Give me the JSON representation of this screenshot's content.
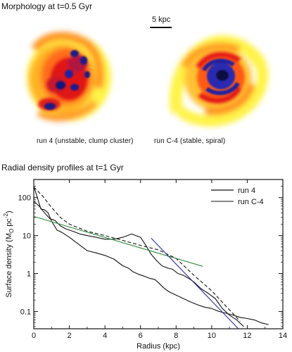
{
  "panel_top": {
    "title": "Morphology at t=0.5 Gyr",
    "scale_label": "5 kpc",
    "captions": [
      "run 4  (unstable, clump cluster)",
      "run C-4 (stable, spiral)"
    ]
  },
  "panel_bottom": {
    "title": "Radial density profiles at t=1 Gyr"
  },
  "chart_data": {
    "type": "line",
    "xlabel": "Radius (kpc)",
    "ylabel": "Surface density (M⊙ pc⁻²)",
    "ylabel_parts": {
      "main": "Surface density (M",
      "sub": "O",
      "mid": " pc",
      "sup": "-2",
      "end": ")"
    },
    "xlim": [
      0,
      14
    ],
    "ylim": [
      0.035,
      300
    ],
    "yscale": "log",
    "xticks": [
      "0",
      "2",
      "4",
      "6",
      "8",
      "10",
      "12",
      "14"
    ],
    "yticks": [
      "0.1",
      "1",
      "10",
      "100"
    ],
    "legend_position": "top-right",
    "legend_entries": [
      "run 4",
      "run C-4"
    ],
    "series": [
      {
        "name": "run 4",
        "style": "solid",
        "color": "#111111",
        "x": [
          0,
          0.2,
          0.4,
          0.6,
          0.8,
          1.0,
          1.3,
          1.6,
          2.0,
          2.5,
          3.0,
          3.5,
          4.0,
          4.5,
          5.0,
          5.3,
          5.6,
          5.9,
          6.2,
          6.5,
          6.8,
          7.0,
          7.3,
          7.6,
          8.0,
          8.4,
          8.8,
          9.2,
          9.6,
          10.0,
          10.4,
          10.8,
          11.2,
          11.6,
          12.0,
          12.4,
          12.8,
          13.2
        ],
        "y": [
          200,
          100,
          50,
          48,
          40,
          24,
          14,
          12,
          9,
          6,
          4,
          3.5,
          3,
          2.4,
          1.6,
          1.4,
          1.1,
          0.95,
          0.85,
          0.75,
          0.7,
          0.58,
          0.42,
          0.33,
          0.27,
          0.22,
          0.18,
          0.15,
          0.13,
          0.12,
          0.1,
          0.09,
          0.08,
          0.07,
          0.065,
          0.06,
          0.05,
          0.045
        ]
      },
      {
        "name": "run C-4",
        "style": "solid",
        "color": "#111111",
        "x": [
          0,
          0.3,
          0.6,
          0.9,
          1.2,
          1.5,
          1.8,
          2.2,
          2.6,
          3.0,
          3.5,
          4.0,
          4.5,
          5.0,
          5.5,
          6.0,
          6.3,
          6.6,
          6.9,
          7.2,
          7.5,
          7.8,
          8.1,
          8.4,
          8.7,
          9.0,
          9.4,
          9.8,
          10.2,
          10.6,
          11.0,
          11.4,
          11.8
        ],
        "y": [
          80,
          60,
          40,
          28,
          25,
          18,
          15,
          13,
          11,
          10,
          9,
          8,
          8,
          9,
          11,
          9,
          5.5,
          3.2,
          2.2,
          1.6,
          1.4,
          1.3,
          1.0,
          0.9,
          0.75,
          0.6,
          0.4,
          0.3,
          0.22,
          0.12,
          0.08,
          0.06,
          0.04
        ]
      },
      {
        "name": "",
        "style": "dashed",
        "color": "#111111",
        "x": [
          0,
          0.5,
          1,
          1.5,
          2,
          3,
          4,
          5,
          6,
          7,
          8,
          9,
          10,
          11,
          11.6
        ],
        "y": [
          190,
          110,
          55,
          30,
          20,
          13,
          10,
          7.5,
          5.5,
          4.2,
          2.5,
          0.9,
          0.35,
          0.11,
          0.055
        ]
      },
      {
        "name": "",
        "style": "fit",
        "color": "#2e8b3a",
        "x": [
          0,
          9.5
        ],
        "y": [
          32,
          1.55
        ]
      },
      {
        "name": "",
        "style": "fit",
        "color": "#2a2aa0",
        "x": [
          6.6,
          11.5
        ],
        "y": [
          8.5,
          0.035
        ]
      }
    ]
  }
}
